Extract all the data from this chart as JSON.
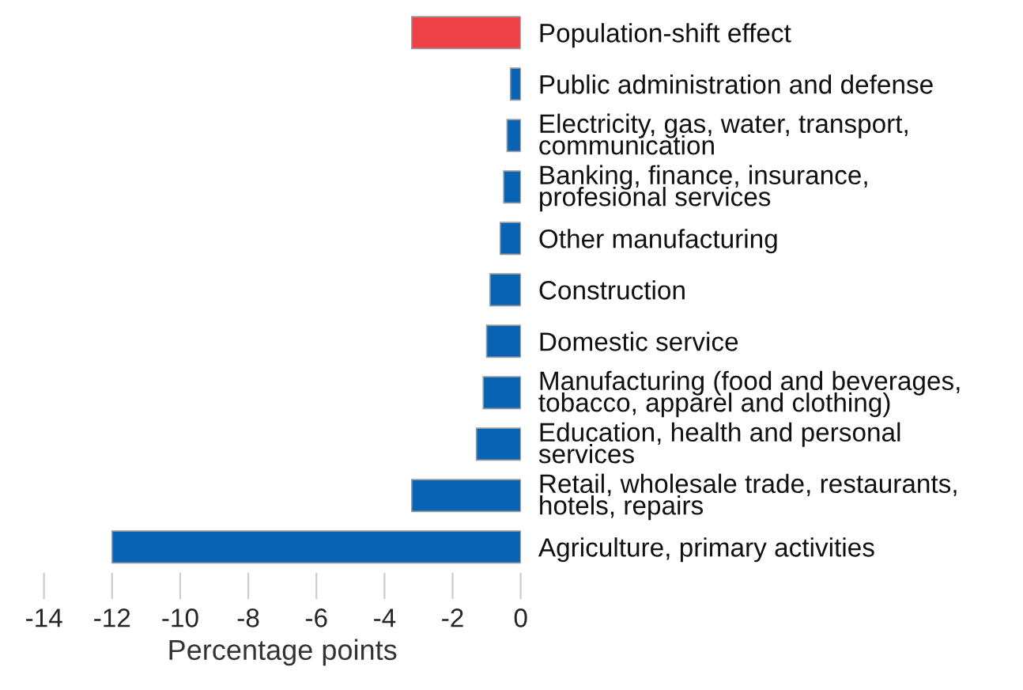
{
  "chart_data": {
    "type": "bar",
    "orientation": "horizontal",
    "xlabel": "Percentage points",
    "categories": [
      "Population-shift effect",
      "Public administration and defense",
      "Electricity, gas, water, transport,\ncommunication",
      "Banking, finance, insurance,\nprofesional services",
      "Other manufacturing",
      "Construction",
      "Domestic service",
      "Manufacturing (food and beverages,\ntobacco, apparel and clothing)",
      "Education, health and personal\nservices",
      "Retail, wholesale trade, restaurants,\nhotels, repairs",
      "Agriculture, primary activities"
    ],
    "values": [
      -3.2,
      -0.3,
      -0.4,
      -0.5,
      -0.6,
      -0.9,
      -1.0,
      -1.1,
      -1.3,
      -3.2,
      -12.0
    ],
    "colors": [
      "#ef4146",
      "#0863b5",
      "#0863b5",
      "#0863b5",
      "#0863b5",
      "#0863b5",
      "#0863b5",
      "#0863b5",
      "#0863b5",
      "#0863b5",
      "#0863b5"
    ],
    "xlim": [
      -14,
      0
    ],
    "xticks": [
      -14,
      -12,
      -10,
      -8,
      -6,
      -4,
      -2,
      0
    ],
    "grid": false,
    "legend": false
  }
}
